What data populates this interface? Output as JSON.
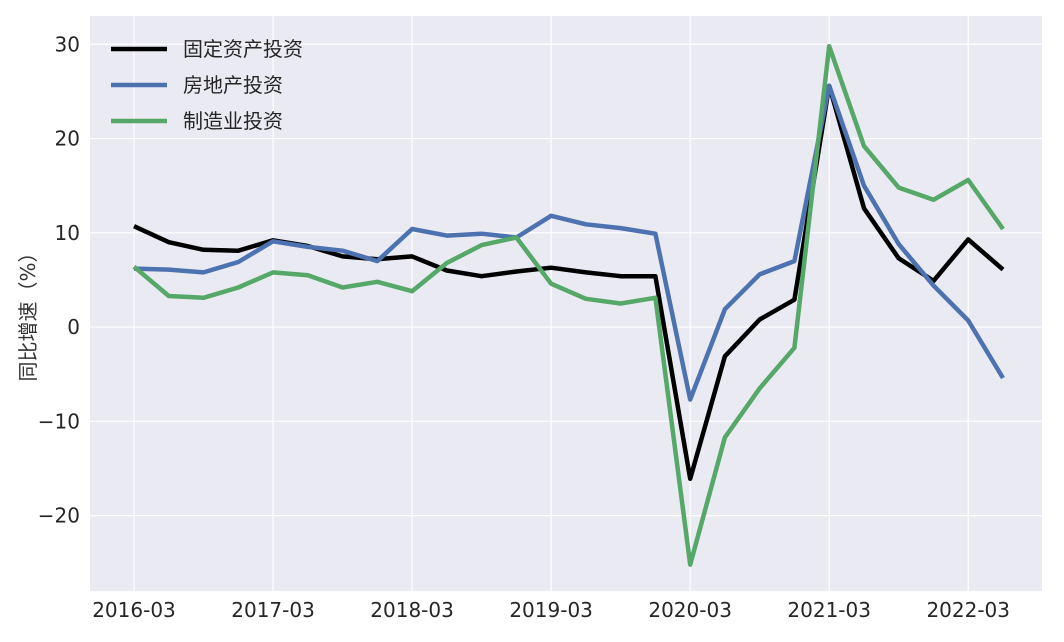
{
  "chart_data": {
    "type": "line",
    "title": "",
    "xlabel": "",
    "ylabel": "同比增速（%）",
    "x": [
      "2016-03",
      "2016-06",
      "2016-09",
      "2016-12",
      "2017-03",
      "2017-06",
      "2017-09",
      "2017-12",
      "2018-03",
      "2018-06",
      "2018-09",
      "2018-12",
      "2019-03",
      "2019-06",
      "2019-09",
      "2019-12",
      "2020-03",
      "2020-06",
      "2020-09",
      "2020-12",
      "2021-03",
      "2021-06",
      "2021-09",
      "2021-12",
      "2022-03",
      "2022-06"
    ],
    "xticks": [
      "2016-03",
      "2017-03",
      "2018-03",
      "2019-03",
      "2020-03",
      "2021-03",
      "2022-03"
    ],
    "yticks": [
      30,
      20,
      10,
      0,
      -10,
      -20
    ],
    "ytick_labels": [
      "30",
      "20",
      "10",
      "0",
      "−10",
      "−20"
    ],
    "ylim": [
      -28,
      33
    ],
    "grid": true,
    "legend_position": "top-left",
    "series": [
      {
        "name": "固定资产投资",
        "color": "#000000",
        "values": [
          10.7,
          9.0,
          8.2,
          8.1,
          9.2,
          8.6,
          7.5,
          7.2,
          7.5,
          6.0,
          5.4,
          5.9,
          6.3,
          5.8,
          5.4,
          5.4,
          -16.1,
          -3.1,
          0.8,
          2.9,
          25.6,
          12.6,
          7.3,
          4.9,
          9.3,
          6.1
        ]
      },
      {
        "name": "房地产投资",
        "color": "#4c72b0",
        "values": [
          6.2,
          6.1,
          5.8,
          6.9,
          9.1,
          8.5,
          8.1,
          7.0,
          10.4,
          9.7,
          9.9,
          9.5,
          11.8,
          10.9,
          10.5,
          9.9,
          -7.7,
          1.9,
          5.6,
          7.0,
          25.6,
          15.0,
          8.8,
          4.4,
          0.7,
          -5.4
        ]
      },
      {
        "name": "制造业投资",
        "color": "#55a868",
        "values": [
          6.4,
          3.3,
          3.1,
          4.2,
          5.8,
          5.5,
          4.2,
          4.8,
          3.8,
          6.8,
          8.7,
          9.5,
          4.6,
          3.0,
          2.5,
          3.1,
          -25.2,
          -11.7,
          -6.5,
          -2.2,
          29.8,
          19.2,
          14.8,
          13.5,
          15.6,
          10.4
        ]
      }
    ]
  }
}
